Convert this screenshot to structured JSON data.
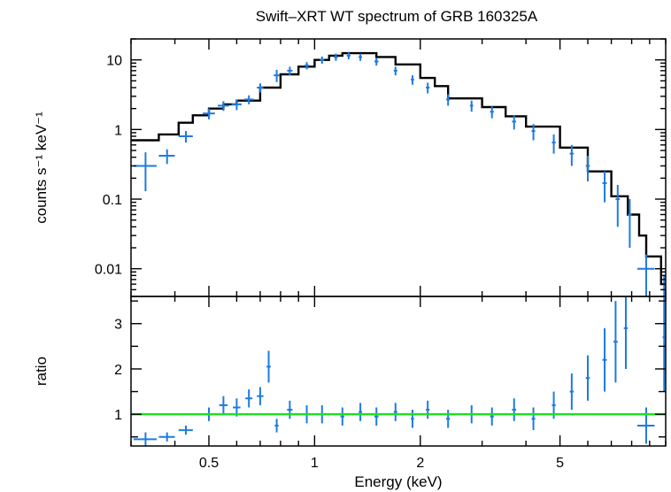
{
  "chart_data": [
    {
      "panel": "spectrum",
      "type": "scatter",
      "title": "Swift–XRT WT spectrum of GRB 160325A",
      "xlabel": "",
      "ylabel": "counts s⁻¹ keV⁻¹",
      "xscale": "log",
      "yscale": "log",
      "xlim": [
        0.3,
        10
      ],
      "ylim": [
        0.004,
        20
      ],
      "xticks": [
        0.5,
        1,
        2,
        5
      ],
      "yticks": [
        0.01,
        0.1,
        1,
        10
      ],
      "ytick_labels": [
        "0.01",
        "0.1",
        "1",
        "10"
      ],
      "grid": false,
      "series": [
        {
          "role": "data",
          "color": "#1e7be0",
          "points": [
            {
              "x": 0.33,
              "xerr": 0.025,
              "y": 0.3,
              "yerr": 0.17
            },
            {
              "x": 0.38,
              "xerr": 0.02,
              "y": 0.42,
              "yerr": 0.1
            },
            {
              "x": 0.43,
              "xerr": 0.02,
              "y": 0.8,
              "yerr": 0.15
            },
            {
              "x": 0.5,
              "xerr": 0.02,
              "y": 1.7,
              "yerr": 0.3
            },
            {
              "x": 0.55,
              "xerr": 0.02,
              "y": 2.2,
              "yerr": 0.35
            },
            {
              "x": 0.6,
              "xerr": 0.02,
              "y": 2.3,
              "yerr": 0.4
            },
            {
              "x": 0.65,
              "xerr": 0.02,
              "y": 2.7,
              "yerr": 0.4
            },
            {
              "x": 0.7,
              "xerr": 0.015,
              "y": 4.0,
              "yerr": 0.6
            },
            {
              "x": 0.78,
              "xerr": 0.015,
              "y": 6.0,
              "yerr": 1.2
            },
            {
              "x": 0.85,
              "xerr": 0.015,
              "y": 7.0,
              "yerr": 1.0
            },
            {
              "x": 0.95,
              "xerr": 0.015,
              "y": 8.3,
              "yerr": 1.0
            },
            {
              "x": 1.05,
              "xerr": 0.015,
              "y": 10.0,
              "yerr": 1.2
            },
            {
              "x": 1.15,
              "xerr": 0.015,
              "y": 11.0,
              "yerr": 1.3
            },
            {
              "x": 1.25,
              "xerr": 0.015,
              "y": 11.5,
              "yerr": 1.3
            },
            {
              "x": 1.35,
              "xerr": 0.015,
              "y": 11.0,
              "yerr": 1.3
            },
            {
              "x": 1.5,
              "xerr": 0.02,
              "y": 9.5,
              "yerr": 1.2
            },
            {
              "x": 1.7,
              "xerr": 0.02,
              "y": 7.0,
              "yerr": 1.0
            },
            {
              "x": 1.9,
              "xerr": 0.02,
              "y": 5.2,
              "yerr": 0.8
            },
            {
              "x": 2.1,
              "xerr": 0.025,
              "y": 4.0,
              "yerr": 0.7
            },
            {
              "x": 2.4,
              "xerr": 0.03,
              "y": 2.7,
              "yerr": 0.5
            },
            {
              "x": 2.8,
              "xerr": 0.03,
              "y": 2.2,
              "yerr": 0.4
            },
            {
              "x": 3.2,
              "xerr": 0.04,
              "y": 1.8,
              "yerr": 0.35
            },
            {
              "x": 3.7,
              "xerr": 0.05,
              "y": 1.3,
              "yerr": 0.3
            },
            {
              "x": 4.2,
              "xerr": 0.05,
              "y": 0.95,
              "yerr": 0.25
            },
            {
              "x": 4.8,
              "xerr": 0.06,
              "y": 0.65,
              "yerr": 0.2
            },
            {
              "x": 5.4,
              "xerr": 0.07,
              "y": 0.45,
              "yerr": 0.15
            },
            {
              "x": 6.0,
              "xerr": 0.08,
              "y": 0.3,
              "yerr": 0.12
            },
            {
              "x": 6.7,
              "xerr": 0.1,
              "y": 0.17,
              "yerr": 0.08
            },
            {
              "x": 7.3,
              "xerr": 0.1,
              "y": 0.1,
              "yerr": 0.06
            },
            {
              "x": 7.9,
              "xerr": 0.1,
              "y": 0.06,
              "yerr": 0.04
            },
            {
              "x": 8.8,
              "xerr": 0.5,
              "y": 0.01,
              "yerr": 0.006
            },
            {
              "x": 9.9,
              "xerr": 0.1,
              "y": 0.005,
              "yerr": 0.003
            }
          ]
        },
        {
          "role": "model",
          "color": "#000000",
          "x": [
            0.3,
            0.36,
            0.41,
            0.45,
            0.5,
            0.55,
            0.6,
            0.7,
            0.8,
            0.9,
            1.0,
            1.1,
            1.2,
            1.3,
            1.5,
            1.7,
            2.0,
            2.2,
            2.4,
            3.0,
            3.5,
            4.0,
            5.0,
            6.0,
            7.0,
            7.8,
            8.4,
            8.8,
            9.7,
            10.0
          ],
          "y": [
            0.7,
            0.85,
            1.25,
            1.6,
            2.0,
            2.3,
            2.6,
            4.0,
            6.2,
            8.0,
            10.0,
            11.5,
            12.5,
            12.5,
            11.0,
            8.6,
            5.5,
            4.2,
            2.8,
            2.1,
            1.55,
            1.1,
            0.55,
            0.25,
            0.11,
            0.06,
            0.03,
            0.015,
            0.006,
            0.006
          ]
        }
      ]
    },
    {
      "panel": "ratio",
      "type": "scatter",
      "xlabel": "Energy (keV)",
      "ylabel": "ratio",
      "xscale": "log",
      "yscale": "linear",
      "xlim": [
        0.3,
        10
      ],
      "ylim": [
        0.3,
        3.6
      ],
      "xticks": [
        0.5,
        1,
        2,
        5
      ],
      "xtick_labels": [
        "0.5",
        "1",
        "2",
        "5"
      ],
      "yticks": [
        1,
        2,
        3
      ],
      "ytick_labels": [
        "1",
        "2",
        "3"
      ],
      "grid": false,
      "series": [
        {
          "role": "reference",
          "color": "#22dd22",
          "y": 1.0
        },
        {
          "role": "data",
          "color": "#1e7be0",
          "points": [
            {
              "x": 0.33,
              "xerr": 0.025,
              "y": 0.45,
              "yerr": 0.15
            },
            {
              "x": 0.38,
              "xerr": 0.02,
              "y": 0.5,
              "yerr": 0.1
            },
            {
              "x": 0.43,
              "xerr": 0.02,
              "y": 0.65,
              "yerr": 0.1
            },
            {
              "x": 0.5,
              "xerr": 0.02,
              "y": 1.0,
              "yerr": 0.15
            },
            {
              "x": 0.55,
              "xerr": 0.015,
              "y": 1.2,
              "yerr": 0.2
            },
            {
              "x": 0.6,
              "xerr": 0.015,
              "y": 1.15,
              "yerr": 0.2
            },
            {
              "x": 0.65,
              "xerr": 0.015,
              "y": 1.35,
              "yerr": 0.2
            },
            {
              "x": 0.7,
              "xerr": 0.015,
              "y": 1.4,
              "yerr": 0.2
            },
            {
              "x": 0.74,
              "xerr": 0.01,
              "y": 2.05,
              "yerr": 0.35
            },
            {
              "x": 0.78,
              "xerr": 0.01,
              "y": 0.75,
              "yerr": 0.15
            },
            {
              "x": 0.85,
              "xerr": 0.015,
              "y": 1.1,
              "yerr": 0.2
            },
            {
              "x": 0.95,
              "xerr": 0.015,
              "y": 1.0,
              "yerr": 0.2
            },
            {
              "x": 1.05,
              "xerr": 0.015,
              "y": 1.0,
              "yerr": 0.2
            },
            {
              "x": 1.2,
              "xerr": 0.015,
              "y": 0.95,
              "yerr": 0.2
            },
            {
              "x": 1.35,
              "xerr": 0.015,
              "y": 1.05,
              "yerr": 0.2
            },
            {
              "x": 1.5,
              "xerr": 0.02,
              "y": 0.95,
              "yerr": 0.2
            },
            {
              "x": 1.7,
              "xerr": 0.02,
              "y": 1.05,
              "yerr": 0.2
            },
            {
              "x": 1.9,
              "xerr": 0.02,
              "y": 0.9,
              "yerr": 0.2
            },
            {
              "x": 2.1,
              "xerr": 0.025,
              "y": 1.1,
              "yerr": 0.2
            },
            {
              "x": 2.4,
              "xerr": 0.03,
              "y": 0.9,
              "yerr": 0.2
            },
            {
              "x": 2.8,
              "xerr": 0.03,
              "y": 1.0,
              "yerr": 0.2
            },
            {
              "x": 3.2,
              "xerr": 0.04,
              "y": 0.95,
              "yerr": 0.2
            },
            {
              "x": 3.7,
              "xerr": 0.05,
              "y": 1.1,
              "yerr": 0.25
            },
            {
              "x": 4.2,
              "xerr": 0.05,
              "y": 0.9,
              "yerr": 0.25
            },
            {
              "x": 4.8,
              "xerr": 0.06,
              "y": 1.2,
              "yerr": 0.3
            },
            {
              "x": 5.4,
              "xerr": 0.07,
              "y": 1.5,
              "yerr": 0.4
            },
            {
              "x": 6.0,
              "xerr": 0.08,
              "y": 1.8,
              "yerr": 0.5
            },
            {
              "x": 6.7,
              "xerr": 0.1,
              "y": 2.2,
              "yerr": 0.7
            },
            {
              "x": 7.2,
              "xerr": 0.1,
              "y": 2.6,
              "yerr": 0.9
            },
            {
              "x": 7.7,
              "xerr": 0.1,
              "y": 2.9,
              "yerr": 0.9
            },
            {
              "x": 8.8,
              "xerr": 0.5,
              "y": 0.75,
              "yerr": 0.4
            },
            {
              "x": 9.9,
              "xerr": 0.1,
              "y": 2.7,
              "yerr": 1.2
            }
          ]
        }
      ]
    }
  ]
}
